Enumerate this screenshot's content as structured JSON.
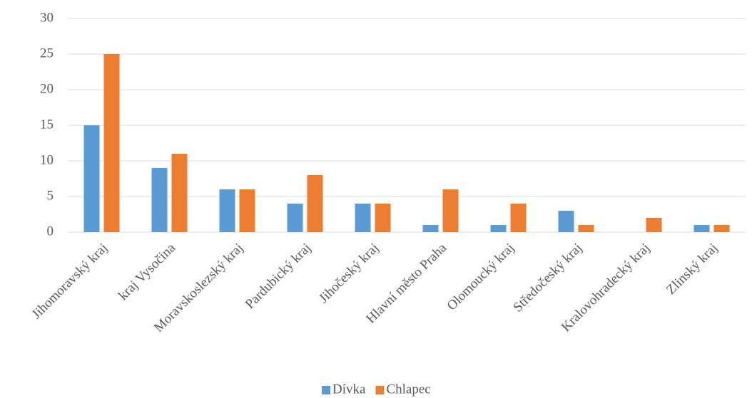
{
  "chart_data": {
    "type": "bar",
    "categories": [
      "Jihomoravský kraj",
      "kraj Vysočina",
      "Moravskoslezský kraj",
      "Pardubický kraj",
      "Jihočeský kraj",
      "Hlavní město Praha",
      "Olomoucký kraj",
      "Středočeský kraj",
      "Kralovohradecký kraj",
      "Zlinský kraj"
    ],
    "series": [
      {
        "name": "Dívka",
        "color": "#5b9bd5",
        "values": [
          15,
          9,
          6,
          4,
          4,
          1,
          1,
          3,
          0,
          1
        ]
      },
      {
        "name": "Chlapec",
        "color": "#ed7d31",
        "values": [
          25,
          11,
          6,
          8,
          4,
          6,
          4,
          1,
          2,
          1
        ]
      }
    ],
    "ylim": [
      0,
      30
    ],
    "yticks": [
      0,
      5,
      10,
      15,
      20,
      25,
      30
    ],
    "grid": true,
    "legend": "bottom"
  }
}
